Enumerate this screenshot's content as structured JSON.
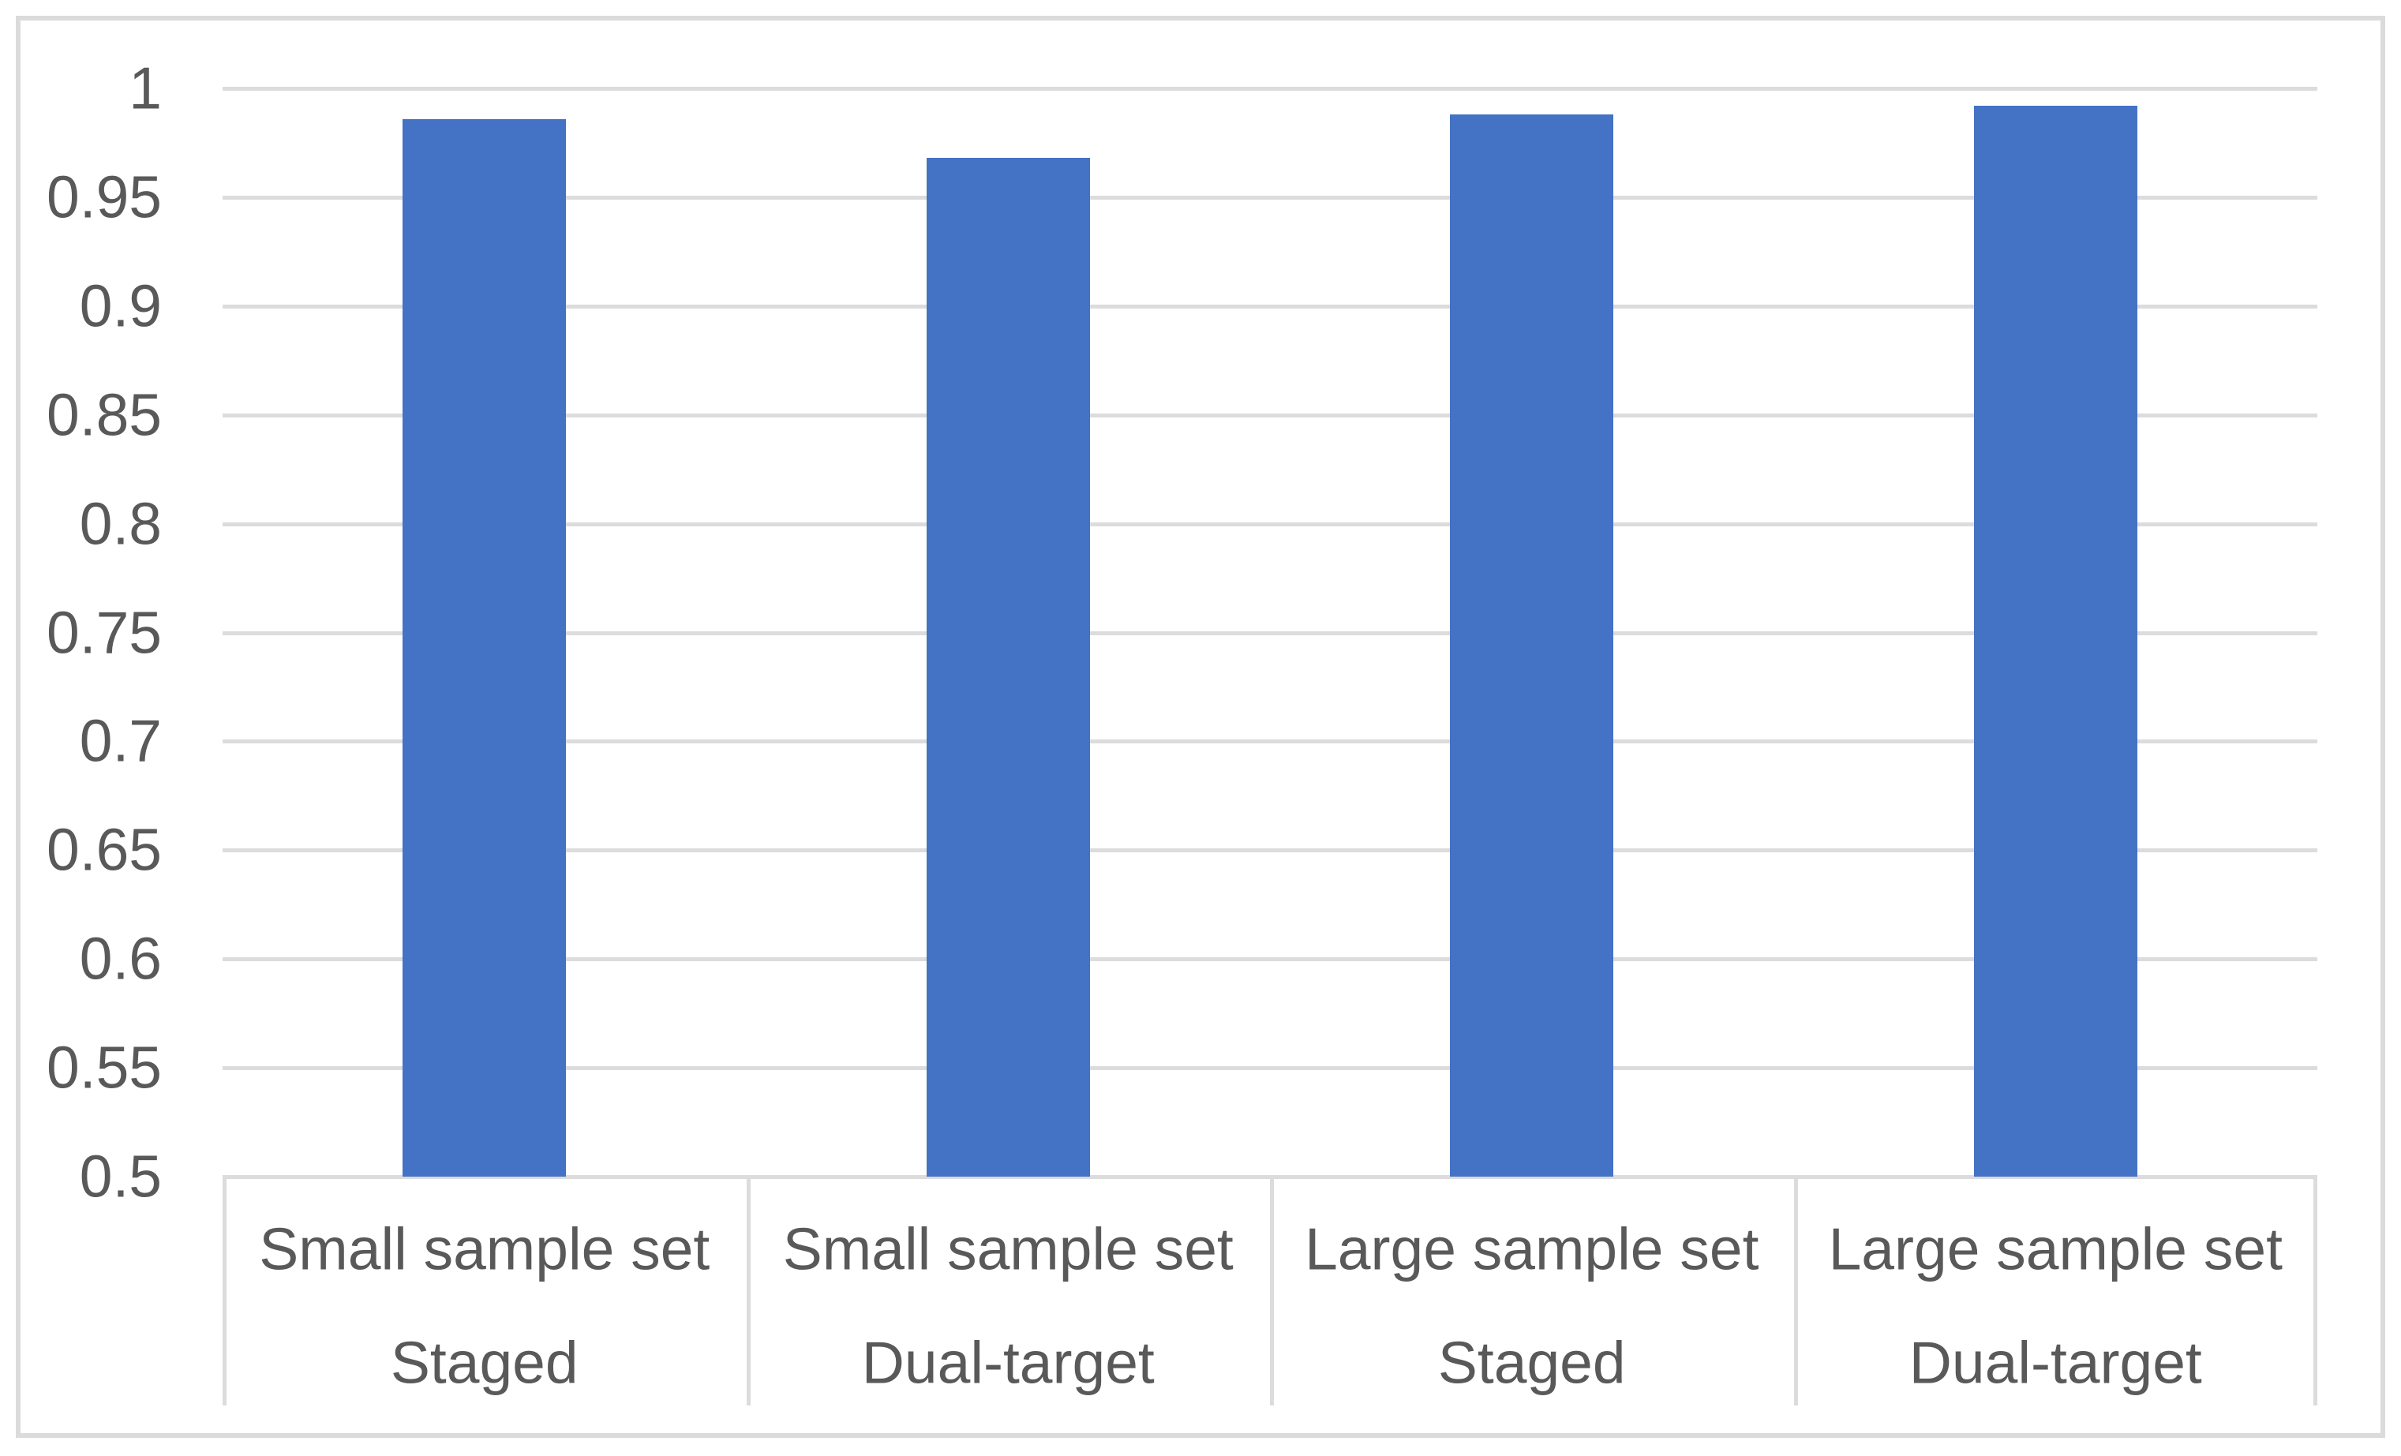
{
  "chart_data": {
    "type": "bar",
    "categories": [
      "Small sample set",
      "Small sample set",
      "Large sample set",
      "Large sample set"
    ],
    "subcategories": [
      "Staged",
      "Dual-target",
      "Staged",
      "Dual-target"
    ],
    "category_labels_multiline": [
      [
        "Small sample set",
        "Staged"
      ],
      [
        "Small sample set",
        "Dual-target"
      ],
      [
        "Large sample set",
        "Staged"
      ],
      [
        "Large sample set",
        "Dual-target"
      ]
    ],
    "values": [
      0.986,
      0.968,
      0.988,
      0.992
    ],
    "title": "",
    "xlabel": "",
    "ylabel": "",
    "ylim": [
      0.5,
      1.0
    ],
    "ytick_step": 0.05,
    "ytick_labels": [
      "1",
      "0.95",
      "0.9",
      "0.85",
      "0.8",
      "0.75",
      "0.7",
      "0.65",
      "0.6",
      "0.55",
      "0.5"
    ],
    "grid": true,
    "legend": false,
    "series_name": "",
    "bar_color": "#4472C4",
    "gridline_color": "#DCDCDC",
    "frame_color": "#DBDBDB",
    "text_color": "#595959",
    "background_color": "#FFFFFF"
  }
}
